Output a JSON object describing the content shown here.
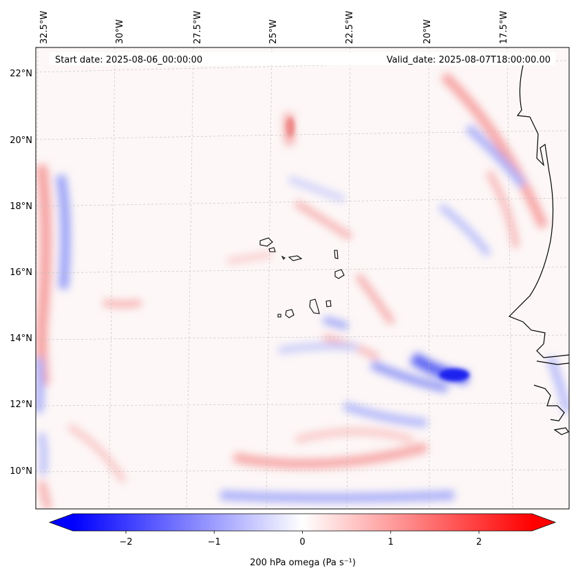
{
  "map": {
    "start_label": "Start date: 2025-08-06_00:00:00",
    "valid_label": "Valid_date: 2025-08-07T18:00:00.00",
    "lon_labels": [
      "32.5°W",
      "30°W",
      "27.5°W",
      "25°W",
      "22.5°W",
      "20°W",
      "17.5°W"
    ],
    "lat_labels": [
      "22°N",
      "20°N",
      "18°N",
      "16°N",
      "14°N",
      "12°N",
      "10°N"
    ],
    "field": "200 hPa omega",
    "units_label": "200 hPa omega (Pa s⁻¹)"
  },
  "colorbar": {
    "ticks": [
      "−2",
      "−1",
      "0",
      "1",
      "2"
    ],
    "tick_values": [
      -2,
      -1,
      0,
      1,
      2
    ],
    "range": [
      -2.6,
      2.6
    ],
    "colors": {
      "negative": "#0000ff",
      "zero": "#ffffff",
      "positive": "#ff0000"
    }
  },
  "features": {
    "coastline_color": "#000000",
    "islands": [
      "Santo Antão",
      "São Vicente",
      "Santa Luzia",
      "São Nicolau",
      "Sal",
      "Boa Vista",
      "Maio",
      "Santiago",
      "Fogo",
      "Brava"
    ]
  }
}
